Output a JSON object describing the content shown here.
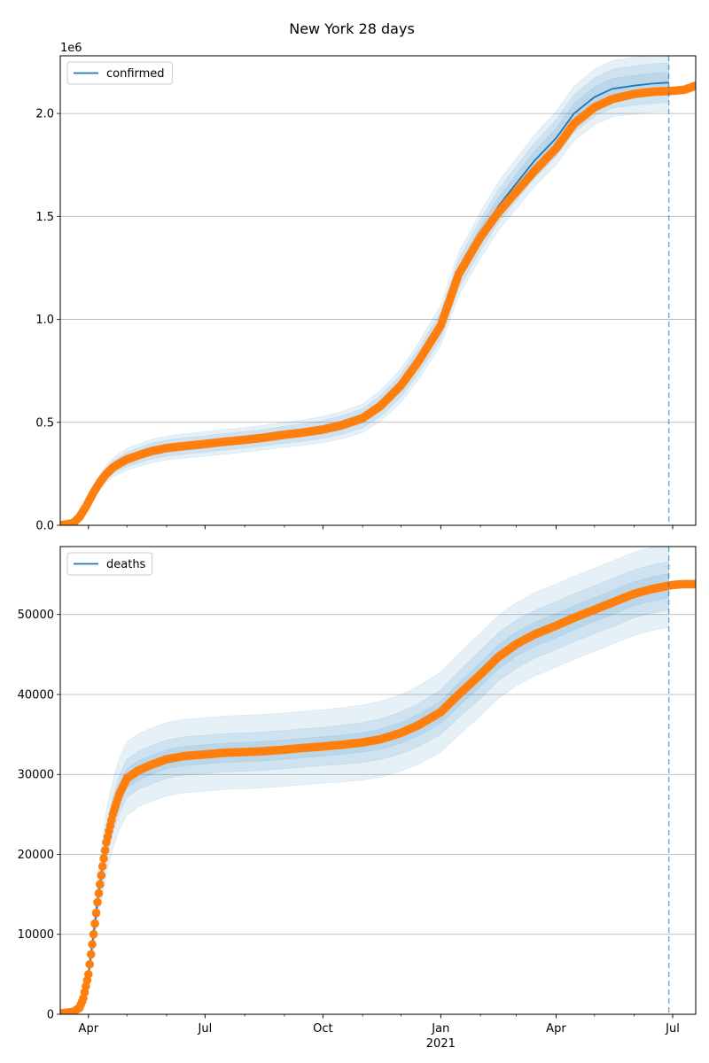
{
  "figure": {
    "title": "New York 28 days"
  },
  "chart_data": [
    {
      "type": "line",
      "title": "",
      "offset_label": "1e6",
      "legend": {
        "label": "confirmed",
        "placement": "upper-left"
      },
      "x_axis": {
        "start": "2020-03-10",
        "end": "2021-07-19",
        "tick_labels": [
          {
            "date": "2020-04-01",
            "label": "Apr"
          },
          {
            "date": "2020-07-01",
            "label": "Jul"
          },
          {
            "date": "2020-10-01",
            "label": "Oct"
          },
          {
            "date": "2021-01-01",
            "label": "Jan"
          },
          {
            "date": "2021-04-01",
            "label": "Apr"
          },
          {
            "date": "2021-07-01",
            "label": "Jul"
          }
        ],
        "year_label": "2021",
        "show_tick_labels": false
      },
      "y_axis": {
        "range": [
          0,
          2.28
        ],
        "ticks": [
          0,
          0.5,
          1.0,
          1.5,
          2.0
        ],
        "tick_labels": [
          "0.0",
          "0.5",
          "1.0",
          "1.5",
          "2.0"
        ],
        "grid": true
      },
      "vline_date": "2021-06-28",
      "observed": {
        "dates": [
          "2020-03-10",
          "2020-03-20",
          "2020-03-25",
          "2020-03-30",
          "2020-04-05",
          "2020-04-10",
          "2020-04-15",
          "2020-04-20",
          "2020-04-25",
          "2020-05-01",
          "2020-05-10",
          "2020-05-20",
          "2020-06-01",
          "2020-06-15",
          "2020-07-01",
          "2020-07-15",
          "2020-08-01",
          "2020-08-15",
          "2020-09-01",
          "2020-09-15",
          "2020-10-01",
          "2020-10-15",
          "2020-11-01",
          "2020-11-15",
          "2020-12-01",
          "2020-12-15",
          "2021-01-01",
          "2021-01-15",
          "2021-02-01",
          "2021-02-15",
          "2021-03-01",
          "2021-03-15",
          "2021-04-01",
          "2021-04-15",
          "2021-05-01",
          "2021-05-15",
          "2021-06-01",
          "2021-06-15",
          "2021-07-01",
          "2021-07-10",
          "2021-07-19"
        ],
        "values": [
          0.0,
          0.01,
          0.04,
          0.09,
          0.16,
          0.21,
          0.25,
          0.28,
          0.3,
          0.32,
          0.34,
          0.36,
          0.375,
          0.385,
          0.395,
          0.405,
          0.415,
          0.425,
          0.44,
          0.45,
          0.465,
          0.485,
          0.52,
          0.58,
          0.68,
          0.8,
          0.97,
          1.22,
          1.4,
          1.52,
          1.62,
          1.72,
          1.83,
          1.95,
          2.03,
          2.07,
          2.095,
          2.105,
          2.11,
          2.115,
          2.135
        ]
      },
      "model": {
        "dates": [
          "2020-03-10",
          "2020-03-20",
          "2020-03-25",
          "2020-03-30",
          "2020-04-05",
          "2020-04-10",
          "2020-04-15",
          "2020-04-20",
          "2020-04-25",
          "2020-05-01",
          "2020-05-10",
          "2020-05-20",
          "2020-06-01",
          "2020-06-15",
          "2020-07-01",
          "2020-07-15",
          "2020-08-01",
          "2020-08-15",
          "2020-09-01",
          "2020-09-15",
          "2020-10-01",
          "2020-10-15",
          "2020-11-01",
          "2020-11-15",
          "2020-12-01",
          "2020-12-15",
          "2021-01-01",
          "2021-01-15",
          "2021-02-01",
          "2021-02-15",
          "2021-03-01",
          "2021-03-15",
          "2021-04-01",
          "2021-04-15",
          "2021-05-01",
          "2021-05-15",
          "2021-06-01",
          "2021-06-15",
          "2021-06-28"
        ],
        "values": [
          0.0,
          0.01,
          0.04,
          0.09,
          0.16,
          0.21,
          0.25,
          0.28,
          0.3,
          0.32,
          0.34,
          0.36,
          0.375,
          0.385,
          0.395,
          0.405,
          0.415,
          0.425,
          0.44,
          0.45,
          0.465,
          0.485,
          0.52,
          0.58,
          0.68,
          0.8,
          0.97,
          1.22,
          1.41,
          1.55,
          1.66,
          1.77,
          1.88,
          2.0,
          2.08,
          2.12,
          2.135,
          2.145,
          2.15
        ],
        "band_half_widths": [
          [
            0.0,
            0.0,
            0.003,
            0.006,
            0.01,
            0.012,
            0.014,
            0.016,
            0.017,
            0.018,
            0.019,
            0.02,
            0.02,
            0.02,
            0.02,
            0.02,
            0.02,
            0.02,
            0.02,
            0.02,
            0.021,
            0.022,
            0.023,
            0.025,
            0.027,
            0.03,
            0.033,
            0.036,
            0.04,
            0.042,
            0.044,
            0.045,
            0.047,
            0.048,
            0.049,
            0.05,
            0.05,
            0.05,
            0.05
          ],
          [
            0.0,
            0.0,
            0.006,
            0.012,
            0.02,
            0.024,
            0.028,
            0.031,
            0.033,
            0.035,
            0.037,
            0.038,
            0.039,
            0.04,
            0.04,
            0.04,
            0.04,
            0.04,
            0.041,
            0.042,
            0.043,
            0.045,
            0.047,
            0.05,
            0.055,
            0.06,
            0.065,
            0.07,
            0.075,
            0.08,
            0.083,
            0.086,
            0.089,
            0.091,
            0.093,
            0.094,
            0.095,
            0.096,
            0.096
          ],
          [
            0.0,
            0.0,
            0.009,
            0.018,
            0.03,
            0.036,
            0.042,
            0.046,
            0.05,
            0.052,
            0.055,
            0.057,
            0.058,
            0.059,
            0.06,
            0.06,
            0.06,
            0.06,
            0.061,
            0.062,
            0.064,
            0.066,
            0.07,
            0.075,
            0.082,
            0.09,
            0.098,
            0.105,
            0.112,
            0.118,
            0.122,
            0.126,
            0.13,
            0.133,
            0.135,
            0.137,
            0.138,
            0.139,
            0.14
          ]
        ]
      }
    },
    {
      "type": "line",
      "title": "",
      "legend": {
        "label": "deaths",
        "placement": "upper-left"
      },
      "x_axis": {
        "start": "2020-03-10",
        "end": "2021-07-19",
        "tick_labels": [
          {
            "date": "2020-04-01",
            "label": "Apr"
          },
          {
            "date": "2020-07-01",
            "label": "Jul"
          },
          {
            "date": "2020-10-01",
            "label": "Oct"
          },
          {
            "date": "2021-01-01",
            "label": "Jan"
          },
          {
            "date": "2021-04-01",
            "label": "Apr"
          },
          {
            "date": "2021-07-01",
            "label": "Jul"
          }
        ],
        "year_label": "2021",
        "show_tick_labels": true
      },
      "y_axis": {
        "range": [
          0,
          58500
        ],
        "ticks": [
          0,
          10000,
          20000,
          30000,
          40000,
          50000
        ],
        "tick_labels": [
          "0",
          "10000",
          "20000",
          "30000",
          "40000",
          "50000"
        ],
        "grid": true
      },
      "vline_date": "2021-06-28",
      "observed": {
        "dates": [
          "2020-03-10",
          "2020-03-20",
          "2020-03-25",
          "2020-03-28",
          "2020-04-01",
          "2020-04-05",
          "2020-04-08",
          "2020-04-12",
          "2020-04-15",
          "2020-04-20",
          "2020-04-25",
          "2020-05-01",
          "2020-05-10",
          "2020-05-20",
          "2020-06-01",
          "2020-06-15",
          "2020-07-01",
          "2020-07-15",
          "2020-08-01",
          "2020-08-15",
          "2020-09-01",
          "2020-09-15",
          "2020-10-01",
          "2020-10-15",
          "2020-11-01",
          "2020-11-15",
          "2020-12-01",
          "2020-12-15",
          "2021-01-01",
          "2021-01-15",
          "2021-02-01",
          "2021-02-15",
          "2021-03-01",
          "2021-03-15",
          "2021-04-01",
          "2021-04-15",
          "2021-05-01",
          "2021-05-15",
          "2021-06-01",
          "2021-06-15",
          "2021-07-01",
          "2021-07-10",
          "2021-07-19"
        ],
        "values": [
          100,
          300,
          800,
          2000,
          5000,
          10000,
          14000,
          18500,
          21500,
          25000,
          27500,
          29500,
          30500,
          31200,
          31900,
          32300,
          32500,
          32700,
          32800,
          32900,
          33100,
          33300,
          33500,
          33700,
          34000,
          34400,
          35200,
          36200,
          37800,
          40000,
          42500,
          44700,
          46300,
          47500,
          48600,
          49600,
          50600,
          51500,
          52600,
          53200,
          53700,
          53800,
          53800
        ]
      },
      "model": {
        "dates": [
          "2020-03-10",
          "2020-03-20",
          "2020-03-25",
          "2020-03-28",
          "2020-04-01",
          "2020-04-05",
          "2020-04-08",
          "2020-04-12",
          "2020-04-15",
          "2020-04-20",
          "2020-04-25",
          "2020-05-01",
          "2020-05-10",
          "2020-05-20",
          "2020-06-01",
          "2020-06-15",
          "2020-07-01",
          "2020-07-15",
          "2020-08-01",
          "2020-08-15",
          "2020-09-01",
          "2020-09-15",
          "2020-10-01",
          "2020-10-15",
          "2020-11-01",
          "2020-11-15",
          "2020-12-01",
          "2020-12-15",
          "2021-01-01",
          "2021-01-15",
          "2021-02-01",
          "2021-02-15",
          "2021-03-01",
          "2021-03-15",
          "2021-04-01",
          "2021-04-15",
          "2021-05-01",
          "2021-05-15",
          "2021-06-01",
          "2021-06-15",
          "2021-06-28"
        ],
        "values": [
          100,
          300,
          800,
          2000,
          5000,
          10000,
          14000,
          18500,
          21500,
          25000,
          27500,
          29500,
          30500,
          31200,
          31900,
          32300,
          32500,
          32700,
          32800,
          32900,
          33100,
          33300,
          33500,
          33700,
          34000,
          34400,
          35200,
          36200,
          37800,
          40000,
          42500,
          44700,
          46300,
          47500,
          48600,
          49600,
          50600,
          51500,
          52600,
          53200,
          53600
        ],
        "band_half_widths": [
          [
            0,
            0,
            50,
            100,
            250,
            500,
            700,
            900,
            1000,
            1100,
            1150,
            1200,
            1200,
            1200,
            1200,
            1200,
            1200,
            1200,
            1200,
            1200,
            1200,
            1200,
            1200,
            1200,
            1200,
            1250,
            1300,
            1350,
            1400,
            1450,
            1500,
            1500,
            1500,
            1500,
            1500,
            1500,
            1500,
            1500,
            1500,
            1500,
            1500
          ],
          [
            0,
            0,
            100,
            200,
            500,
            1000,
            1400,
            1800,
            2000,
            2200,
            2300,
            2400,
            2400,
            2400,
            2400,
            2400,
            2400,
            2400,
            2400,
            2400,
            2400,
            2400,
            2400,
            2450,
            2500,
            2550,
            2600,
            2700,
            2800,
            2900,
            3000,
            3000,
            3000,
            3000,
            3000,
            3000,
            3000,
            3000,
            3000,
            3000,
            3000
          ],
          [
            0,
            0,
            200,
            400,
            1000,
            2000,
            2800,
            3600,
            4000,
            4300,
            4500,
            4600,
            4600,
            4600,
            4600,
            4600,
            4600,
            4600,
            4600,
            4600,
            4600,
            4600,
            4600,
            4650,
            4700,
            4750,
            4800,
            4900,
            5000,
            5100,
            5200,
            5200,
            5200,
            5200,
            5200,
            5200,
            5200,
            5200,
            5200,
            5200,
            5200
          ]
        ]
      }
    }
  ],
  "colors": {
    "model": "#1f77b4",
    "observed": "#ff7f0e",
    "band": "#1f77b4",
    "grid": "#b0b0b0",
    "vline": "#1f77b4"
  }
}
